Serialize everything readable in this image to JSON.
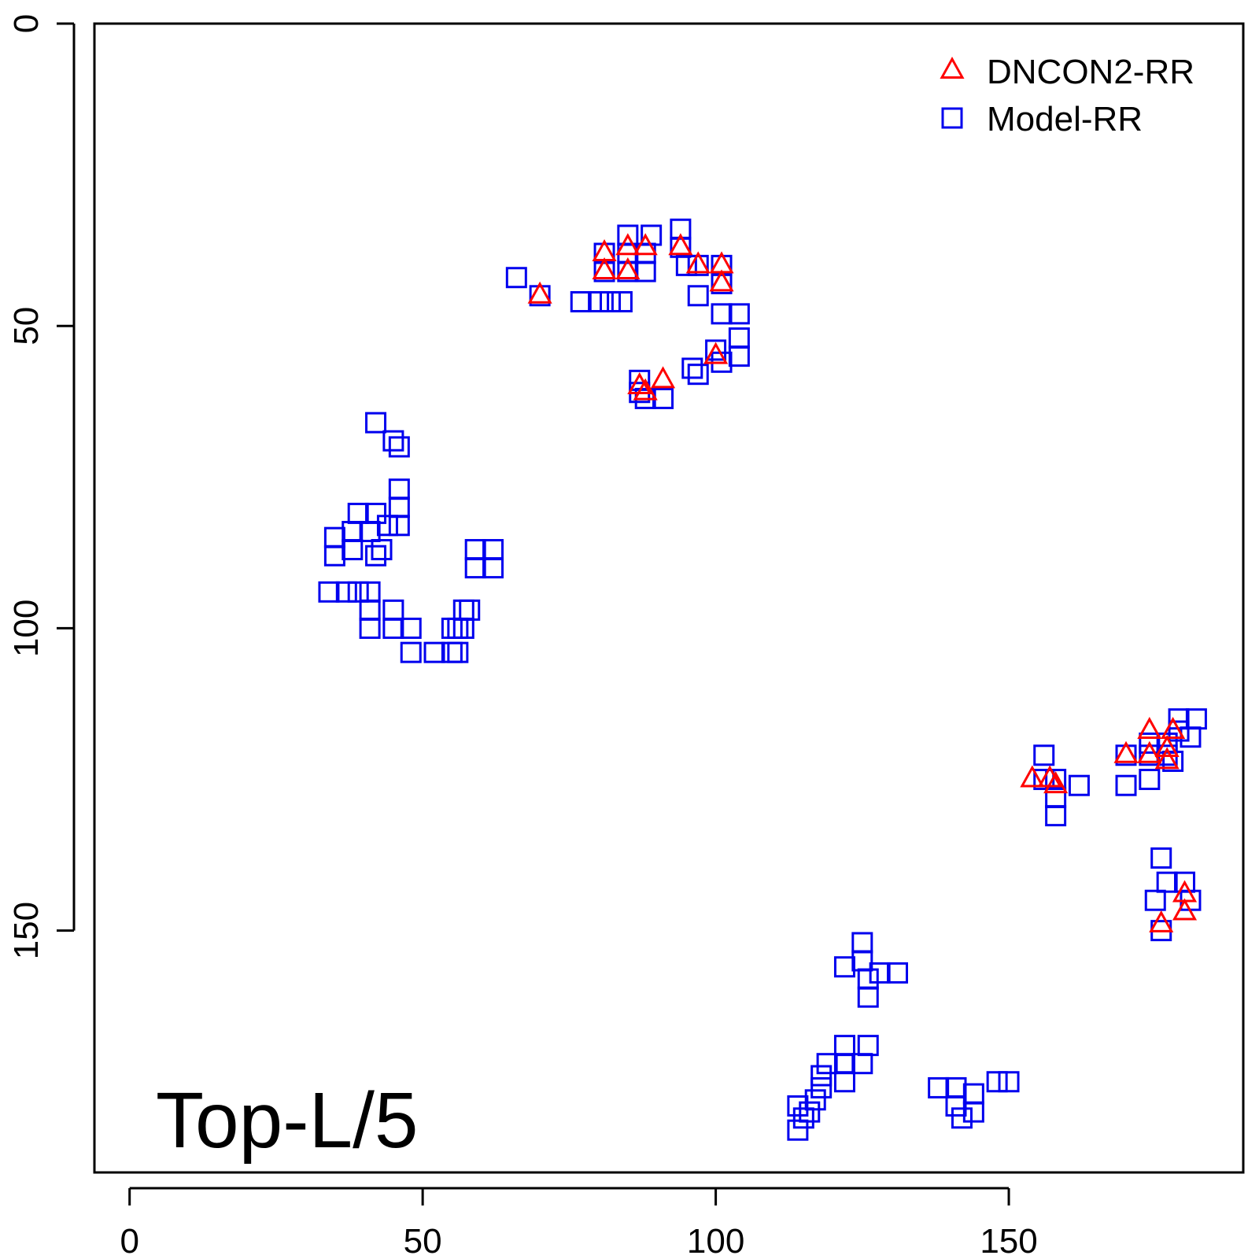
{
  "chart_data": {
    "type": "scatter",
    "annotation": "Top-L/5",
    "xlim": [
      -6,
      190
    ],
    "ylim": [
      0,
      190
    ],
    "y_reversed": true,
    "x_ticks": [
      0,
      50,
      100,
      150
    ],
    "y_ticks": [
      0,
      50,
      100,
      150
    ],
    "legend_position": "top-right",
    "series": [
      {
        "name": "DNCON2-RR",
        "marker": "triangle",
        "color": "#ff0000",
        "points": [
          [
            70,
            45
          ],
          [
            81,
            38
          ],
          [
            81,
            41
          ],
          [
            85,
            37
          ],
          [
            85,
            41
          ],
          [
            88,
            37
          ],
          [
            94,
            37
          ],
          [
            97,
            40
          ],
          [
            101,
            40
          ],
          [
            101,
            43
          ],
          [
            100,
            55
          ],
          [
            87,
            60
          ],
          [
            88,
            61
          ],
          [
            91,
            59
          ],
          [
            154,
            125
          ],
          [
            157,
            125
          ],
          [
            158,
            126
          ],
          [
            170,
            121
          ],
          [
            174,
            117
          ],
          [
            174,
            121
          ],
          [
            177,
            122
          ],
          [
            177,
            120
          ],
          [
            178,
            117
          ],
          [
            180,
            147
          ],
          [
            180,
            144
          ],
          [
            176,
            149
          ]
        ]
      },
      {
        "name": "Model-RR",
        "marker": "square",
        "color": "#0000ee",
        "points": [
          [
            66,
            42
          ],
          [
            70,
            45
          ],
          [
            77,
            46
          ],
          [
            80,
            46
          ],
          [
            81,
            38
          ],
          [
            81,
            41
          ],
          [
            82,
            46
          ],
          [
            84,
            46
          ],
          [
            85,
            35
          ],
          [
            85,
            38
          ],
          [
            85,
            41
          ],
          [
            89,
            35
          ],
          [
            88,
            38
          ],
          [
            88,
            41
          ],
          [
            94,
            34
          ],
          [
            94,
            37
          ],
          [
            95,
            40
          ],
          [
            97,
            40
          ],
          [
            97,
            45
          ],
          [
            101,
            40
          ],
          [
            101,
            43
          ],
          [
            101,
            48
          ],
          [
            104,
            48
          ],
          [
            104,
            52
          ],
          [
            104,
            55
          ],
          [
            100,
            54
          ],
          [
            101,
            56
          ],
          [
            96,
            57
          ],
          [
            97,
            58
          ],
          [
            87,
            59
          ],
          [
            87,
            61
          ],
          [
            88,
            62
          ],
          [
            91,
            62
          ],
          [
            42,
            66
          ],
          [
            45,
            69
          ],
          [
            46,
            70
          ],
          [
            46,
            77
          ],
          [
            46,
            80
          ],
          [
            46,
            83
          ],
          [
            39,
            81
          ],
          [
            42,
            81
          ],
          [
            38,
            84
          ],
          [
            35,
            85
          ],
          [
            41,
            84
          ],
          [
            44,
            83
          ],
          [
            38,
            87
          ],
          [
            42,
            88
          ],
          [
            35,
            88
          ],
          [
            43,
            87
          ],
          [
            59,
            87
          ],
          [
            62,
            87
          ],
          [
            59,
            90
          ],
          [
            62,
            90
          ],
          [
            34,
            94
          ],
          [
            37,
            94
          ],
          [
            39,
            94
          ],
          [
            41,
            94
          ],
          [
            41,
            97
          ],
          [
            41,
            100
          ],
          [
            45,
            97
          ],
          [
            45,
            100
          ],
          [
            48,
            100
          ],
          [
            48,
            104
          ],
          [
            52,
            104
          ],
          [
            55,
            104
          ],
          [
            56,
            104
          ],
          [
            55,
            100
          ],
          [
            56,
            100
          ],
          [
            57,
            100
          ],
          [
            57,
            97
          ],
          [
            58,
            97
          ],
          [
            156,
            121
          ],
          [
            156,
            125
          ],
          [
            158,
            125
          ],
          [
            158,
            128
          ],
          [
            158,
            131
          ],
          [
            162,
            126
          ],
          [
            170,
            121
          ],
          [
            170,
            126
          ],
          [
            174,
            125
          ],
          [
            174,
            119
          ],
          [
            174,
            121
          ],
          [
            177,
            119
          ],
          [
            177,
            121
          ],
          [
            178,
            122
          ],
          [
            179,
            115
          ],
          [
            182,
            115
          ],
          [
            181,
            118
          ],
          [
            179,
            117
          ],
          [
            176,
            138
          ],
          [
            177,
            142
          ],
          [
            175,
            145
          ],
          [
            176,
            150
          ],
          [
            180,
            142
          ],
          [
            181,
            145
          ],
          [
            125,
            152
          ],
          [
            122,
            156
          ],
          [
            125,
            155
          ],
          [
            126,
            158
          ],
          [
            126,
            161
          ],
          [
            128,
            157
          ],
          [
            131,
            157
          ],
          [
            122,
            169
          ],
          [
            122,
            172
          ],
          [
            122,
            175
          ],
          [
            119,
            172
          ],
          [
            118,
            174
          ],
          [
            118,
            176
          ],
          [
            117,
            178
          ],
          [
            116,
            180
          ],
          [
            114,
            179
          ],
          [
            115,
            181
          ],
          [
            114,
            183
          ],
          [
            126,
            169
          ],
          [
            125,
            172
          ],
          [
            138,
            176
          ],
          [
            141,
            176
          ],
          [
            141,
            179
          ],
          [
            144,
            177
          ],
          [
            142,
            181
          ],
          [
            144,
            180
          ],
          [
            148,
            175
          ],
          [
            150,
            175
          ]
        ]
      }
    ]
  }
}
